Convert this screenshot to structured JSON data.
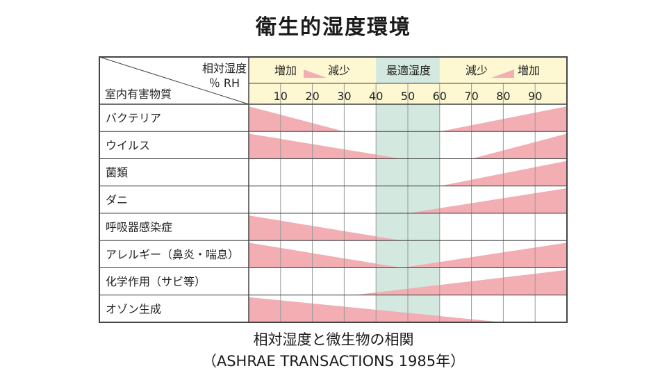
{
  "title": "衛生的湿度環境",
  "corner": {
    "top_label": "相対湿度",
    "top_unit": "％ RH",
    "bottom_label": "室内有害物質"
  },
  "header": {
    "left_increase": "増加",
    "left_decrease": "減少",
    "optimal": "最適湿度",
    "right_decrease": "減少",
    "right_increase": "増加"
  },
  "caption": {
    "line1": "相対湿度と微生物の相関",
    "line2": "（ASHRAE TRANSACTIONS 1985年）"
  },
  "colors": {
    "wedge": "#f2aeb2",
    "optimal_band": "#d3e8df",
    "header_band": "#fdf8d2",
    "grid": "#9a9a9a",
    "border": "#444444"
  },
  "chart_data": {
    "type": "table",
    "x_ticks": [
      10,
      20,
      30,
      40,
      50,
      60,
      70,
      80,
      90
    ],
    "x_range": [
      0,
      100
    ],
    "optimal_range": [
      40,
      60
    ],
    "rows": [
      {
        "label": "バクテリア",
        "left": {
          "start": 0,
          "end": 30,
          "high": 1.0
        },
        "right": {
          "start": 60,
          "end": 100,
          "high": 1.0
        }
      },
      {
        "label": "ウイルス",
        "left": {
          "start": 0,
          "end": 48,
          "high": 1.0
        },
        "right": {
          "start": 70,
          "end": 100,
          "high": 1.0
        }
      },
      {
        "label": "菌類",
        "left": null,
        "right": {
          "start": 60,
          "end": 100,
          "high": 1.0
        }
      },
      {
        "label": "ダニ",
        "left": null,
        "right": {
          "start": 50,
          "end": 100,
          "high": 1.0
        }
      },
      {
        "label": "呼吸器感染症",
        "left": {
          "start": 0,
          "end": 48,
          "high": 1.0
        },
        "right": null
      },
      {
        "label": "アレルギー（鼻炎・喘息）",
        "left": {
          "start": 0,
          "end": 48,
          "high": 1.0
        },
        "right": {
          "start": 48,
          "end": 100,
          "high": 1.0
        }
      },
      {
        "label": "化学作用（サビ等）",
        "left": null,
        "right": {
          "start": 33,
          "end": 100,
          "high": 1.0
        }
      },
      {
        "label": "オゾン生成",
        "left": {
          "start": 0,
          "end": 80,
          "high": 1.0
        },
        "right": null
      }
    ]
  }
}
